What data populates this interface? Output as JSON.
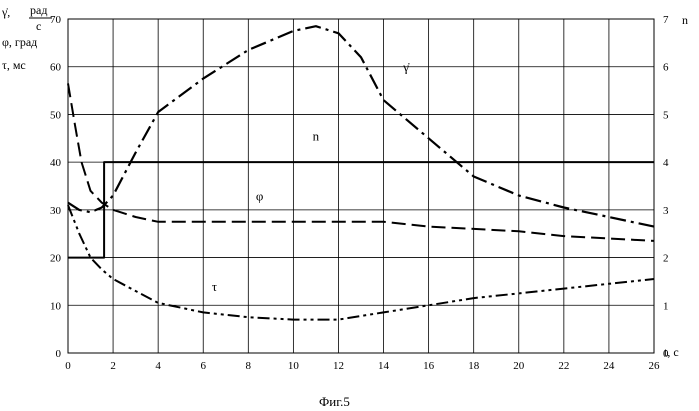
{
  "caption": "Фиг.5",
  "chart_data": {
    "type": "line",
    "grid": true,
    "x": {
      "label": "t, с",
      "ticks": [
        "0",
        "2",
        "4",
        "6",
        "8",
        "10",
        "12",
        "14",
        "16",
        "18",
        "20",
        "22",
        "24",
        "26"
      ],
      "range": [
        0,
        26
      ]
    },
    "y_left": {
      "labels": [
        "γ̇,",
        "рад",
        "с",
        "φ, град",
        "τ, мс"
      ],
      "ticks": [
        "0",
        "10",
        "20",
        "30",
        "40",
        "50",
        "60",
        "70"
      ],
      "range": [
        0,
        70
      ]
    },
    "y_right": {
      "label": "n",
      "ticks": [
        "0",
        "1",
        "2",
        "3",
        "4",
        "5",
        "6",
        "7"
      ],
      "range": [
        0,
        7
      ]
    },
    "series": [
      {
        "name": "γ̇",
        "axis": "left",
        "style": "dash-dot",
        "x": [
          0,
          0.5,
          1,
          1.5,
          2,
          3,
          4,
          6,
          8,
          10,
          11,
          12,
          13,
          14,
          16,
          18,
          20,
          22,
          24,
          26
        ],
        "y": [
          31.5,
          30,
          29.5,
          30.5,
          33,
          42,
          50.5,
          57.5,
          63.5,
          67.5,
          68.5,
          67,
          62,
          53,
          45,
          37,
          33,
          30.5,
          28.5,
          26.5
        ]
      },
      {
        "name": "n",
        "axis": "right",
        "style": "solid",
        "x": [
          0,
          1.6,
          1.6,
          26
        ],
        "y": [
          2,
          2,
          4,
          4
        ]
      },
      {
        "name": "φ",
        "axis": "left",
        "style": "dashed",
        "x": [
          0,
          0.3,
          0.6,
          1,
          1.5,
          2,
          3,
          4,
          6,
          8,
          10,
          12,
          14,
          16,
          18,
          20,
          22,
          24,
          26
        ],
        "y": [
          56.5,
          48,
          40,
          34,
          31.5,
          30,
          28.5,
          27.5,
          27.5,
          27.5,
          27.5,
          27.5,
          27.5,
          26.5,
          26,
          25.5,
          24.5,
          24,
          23.5
        ]
      },
      {
        "name": "τ",
        "axis": "left",
        "style": "dash-dot-dot",
        "x": [
          0,
          0.5,
          1,
          1.5,
          2,
          3,
          4,
          6,
          8,
          10,
          12,
          14,
          16,
          18,
          20,
          22,
          24,
          26
        ],
        "y": [
          31,
          25,
          20,
          17.5,
          15.5,
          13,
          10.5,
          8.5,
          7.5,
          7,
          7,
          8.5,
          10,
          11.5,
          12.5,
          13.5,
          14.5,
          15.5
        ]
      }
    ],
    "series_labels": [
      {
        "name": "γ̇",
        "x": 15,
        "y": 59
      },
      {
        "name": "n",
        "x": 11,
        "y": 4.45
      },
      {
        "name": "φ",
        "x": 8.5,
        "y": 32
      },
      {
        "name": "τ",
        "x": 6.5,
        "y": 13
      }
    ]
  }
}
